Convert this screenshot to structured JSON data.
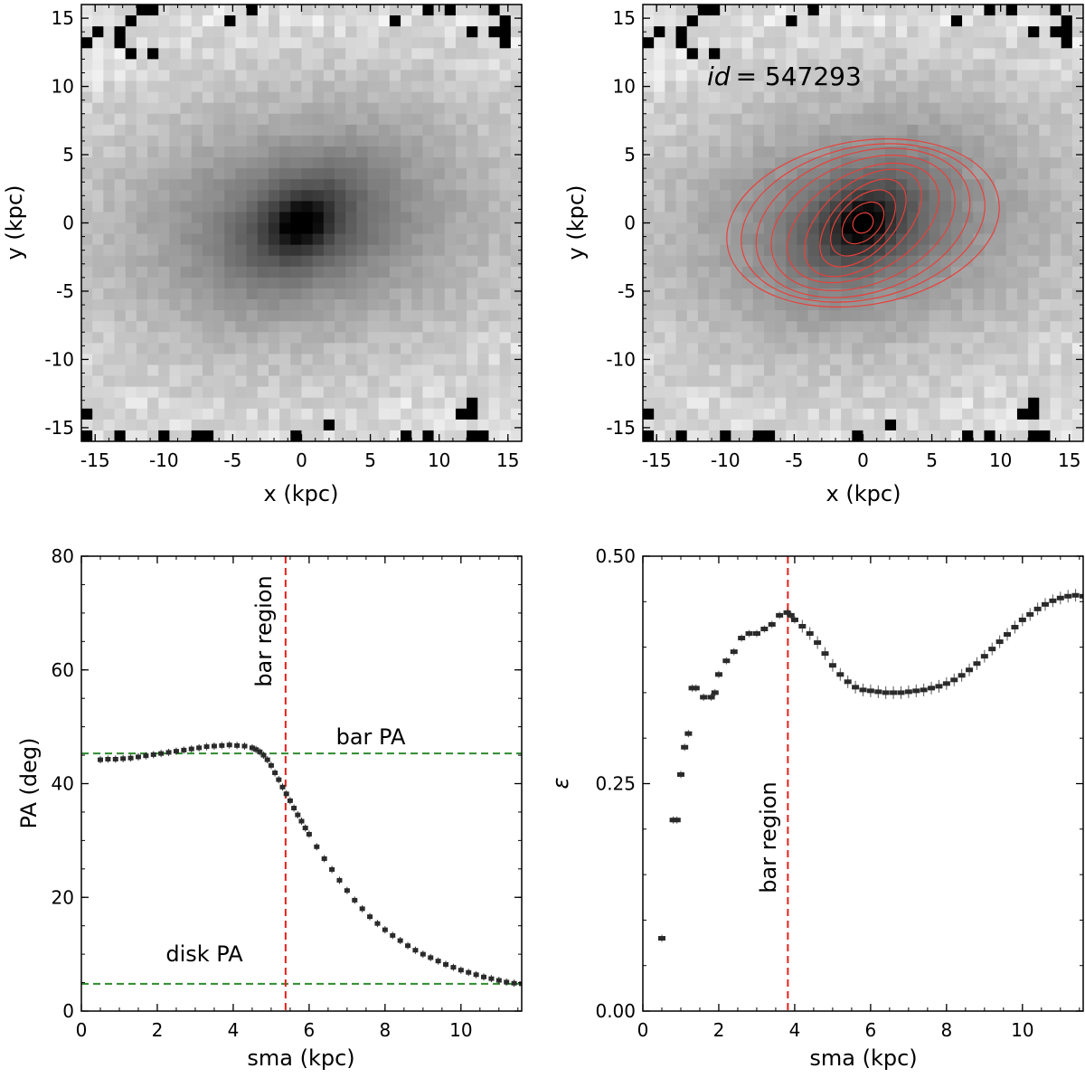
{
  "chart_data": [
    {
      "type": "heatmap",
      "panel": "top-left",
      "xlabel": "x (kpc)",
      "ylabel": "y (kpc)",
      "xlim": [
        -16,
        16
      ],
      "ylim": [
        -16,
        16
      ],
      "xticks": [
        -15,
        -10,
        -5,
        0,
        5,
        10,
        15
      ],
      "yticks": [
        -15,
        -10,
        -5,
        0,
        5,
        10,
        15
      ],
      "image": {
        "colormap": "gray_r",
        "description_values": {
          "peak_center": [
            0,
            0
          ],
          "disk_pa_deg": 5,
          "bar_pa_deg": 45
        }
      }
    },
    {
      "type": "heatmap",
      "panel": "top-right",
      "xlabel": "x (kpc)",
      "ylabel": "y (kpc)",
      "xlim": [
        -16,
        16
      ],
      "ylim": [
        -16,
        16
      ],
      "xticks": [
        -15,
        -10,
        -5,
        0,
        5,
        10,
        15
      ],
      "yticks": [
        -15,
        -10,
        -5,
        0,
        5,
        10,
        15
      ],
      "annotation": "id = 547293",
      "annotation_id_label": "id",
      "annotation_value": "= 547293",
      "contour_color": "#e8403a",
      "isophotes": [
        {
          "sma": 0.8,
          "ellipticity": 0.15,
          "pa_deg": 44
        },
        {
          "sma": 1.8,
          "ellipticity": 0.35,
          "pa_deg": 45
        },
        {
          "sma": 2.9,
          "ellipticity": 0.41,
          "pa_deg": 46
        },
        {
          "sma": 3.9,
          "ellipticity": 0.44,
          "pa_deg": 46
        },
        {
          "sma": 5.0,
          "ellipticity": 0.42,
          "pa_deg": 40
        },
        {
          "sma": 6.0,
          "ellipticity": 0.39,
          "pa_deg": 30
        },
        {
          "sma": 7.0,
          "ellipticity": 0.36,
          "pa_deg": 23
        },
        {
          "sma": 8.0,
          "ellipticity": 0.36,
          "pa_deg": 18
        },
        {
          "sma": 9.0,
          "ellipticity": 0.38,
          "pa_deg": 13
        },
        {
          "sma": 10.0,
          "ellipticity": 0.4,
          "pa_deg": 10
        }
      ]
    },
    {
      "type": "scatter",
      "panel": "bottom-left",
      "xlabel": "sma (kpc)",
      "ylabel": "PA (deg)",
      "xlim": [
        0,
        11.6
      ],
      "ylim": [
        0,
        80
      ],
      "xticks": [
        0,
        2,
        4,
        6,
        8,
        10
      ],
      "yticks": [
        0,
        20,
        40,
        60,
        80
      ],
      "series": [
        {
          "x": [
            0.5,
            0.7,
            0.9,
            1.1,
            1.3,
            1.5,
            1.7,
            1.9,
            2.1,
            2.3,
            2.5,
            2.7,
            2.9,
            3.1,
            3.3,
            3.5,
            3.7,
            3.9,
            4.1,
            4.3,
            4.5,
            4.6,
            4.7,
            4.8,
            4.9,
            5.0,
            5.1,
            5.2,
            5.3,
            5.4,
            5.5,
            5.6,
            5.7,
            5.8,
            5.9,
            6.0,
            6.2,
            6.4,
            6.6,
            6.8,
            7.0,
            7.2,
            7.4,
            7.6,
            7.8,
            8.0,
            8.2,
            8.4,
            8.6,
            8.8,
            9.0,
            9.2,
            9.4,
            9.6,
            9.8,
            10.0,
            10.2,
            10.4,
            10.6,
            10.8,
            11.0,
            11.2,
            11.4,
            11.6
          ],
          "y": [
            44.2,
            44.3,
            44.3,
            44.4,
            44.5,
            44.7,
            44.9,
            45.1,
            45.3,
            45.5,
            45.7,
            45.9,
            46.1,
            46.3,
            46.5,
            46.6,
            46.7,
            46.8,
            46.7,
            46.6,
            46.3,
            46.0,
            45.6,
            45.0,
            44.2,
            43.2,
            41.9,
            40.7,
            39.4,
            38.2,
            37.0,
            35.7,
            34.5,
            33.4,
            32.2,
            31.1,
            28.9,
            26.8,
            24.9,
            23.0,
            21.2,
            19.5,
            18.0,
            16.6,
            15.4,
            14.3,
            13.3,
            12.4,
            11.5,
            10.7,
            10.0,
            9.4,
            8.8,
            8.2,
            7.7,
            7.2,
            6.8,
            6.4,
            6.0,
            5.7,
            5.4,
            5.1,
            4.9,
            4.8
          ]
        }
      ],
      "hlines": [
        {
          "y": 45.3,
          "color": "#2e8b2e",
          "label": "bar PA"
        },
        {
          "y": 4.8,
          "color": "#2e8b2e",
          "label": "disk PA"
        }
      ],
      "vline": {
        "x": 5.38,
        "color": "#e8201c",
        "label": "bar region"
      }
    },
    {
      "type": "scatter",
      "panel": "bottom-right",
      "xlabel": "sma (kpc)",
      "ylabel": "ε",
      "xlim": [
        0,
        11.6
      ],
      "ylim": [
        0,
        0.5
      ],
      "xticks": [
        0,
        2,
        4,
        6,
        8,
        10
      ],
      "yticks": [
        0.0,
        0.25,
        0.5
      ],
      "ytick_labels": [
        "0.00",
        "0.25",
        "0.50"
      ],
      "series": [
        {
          "x": [
            0.5,
            0.8,
            0.9,
            1.0,
            1.1,
            1.2,
            1.3,
            1.4,
            1.6,
            1.8,
            1.9,
            2.0,
            2.2,
            2.4,
            2.6,
            2.8,
            3.0,
            3.2,
            3.4,
            3.6,
            3.8,
            3.9,
            4.0,
            4.2,
            4.4,
            4.6,
            4.8,
            5.0,
            5.2,
            5.4,
            5.6,
            5.8,
            6.0,
            6.2,
            6.4,
            6.6,
            6.8,
            7.0,
            7.2,
            7.4,
            7.6,
            7.8,
            8.0,
            8.2,
            8.4,
            8.6,
            8.8,
            9.0,
            9.2,
            9.4,
            9.6,
            9.8,
            10.0,
            10.2,
            10.4,
            10.6,
            10.8,
            11.0,
            11.2,
            11.4,
            11.6
          ],
          "y": [
            0.08,
            0.21,
            0.21,
            0.26,
            0.29,
            0.305,
            0.355,
            0.355,
            0.345,
            0.345,
            0.35,
            0.37,
            0.385,
            0.395,
            0.41,
            0.415,
            0.415,
            0.42,
            0.425,
            0.435,
            0.438,
            0.435,
            0.43,
            0.423,
            0.415,
            0.405,
            0.393,
            0.38,
            0.37,
            0.362,
            0.356,
            0.353,
            0.352,
            0.351,
            0.35,
            0.35,
            0.35,
            0.351,
            0.352,
            0.353,
            0.355,
            0.357,
            0.36,
            0.364,
            0.369,
            0.375,
            0.382,
            0.39,
            0.398,
            0.406,
            0.414,
            0.422,
            0.43,
            0.436,
            0.442,
            0.447,
            0.451,
            0.454,
            0.456,
            0.457,
            0.456
          ]
        }
      ],
      "vline": {
        "x": 3.82,
        "color": "#e8201c",
        "label": "bar region"
      }
    }
  ]
}
